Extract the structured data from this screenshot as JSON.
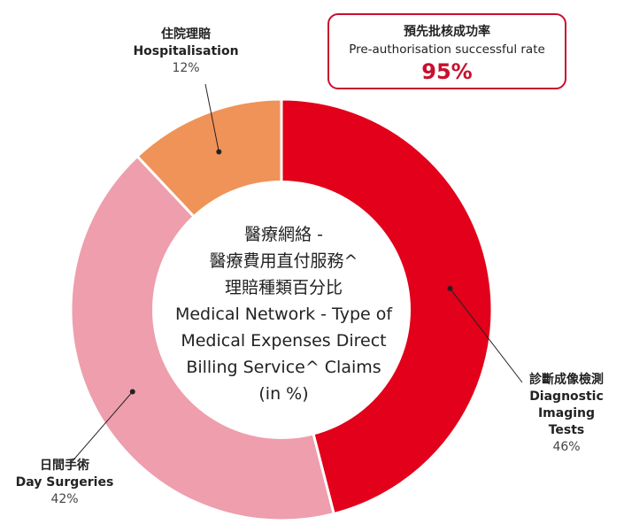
{
  "callout": {
    "label_zh": "預先批核成功率",
    "label_en": "Pre-authorisation successful rate",
    "value": "95%"
  },
  "center_title": {
    "lines": [
      "醫療網絡 -",
      "醫療費用直付服務^",
      "理賠種類百分比",
      "Medical Network - Type of",
      "Medical Expenses Direct",
      "Billing Service^ Claims",
      "(in %)"
    ]
  },
  "chart_data": {
    "type": "pie",
    "donut": true,
    "start": "top",
    "direction": "clockwise",
    "slices": [
      {
        "label_zh": "診斷成像檢測",
        "label_en": "Diagnostic Imaging Tests",
        "value": 46,
        "display": "46%",
        "color": "#e2001a"
      },
      {
        "label_zh": "日間手術",
        "label_en": "Day Surgeries",
        "value": 42,
        "display": "42%",
        "color": "#ee9eac"
      },
      {
        "label_zh": "住院理賠",
        "label_en": "Hospitalisation",
        "value": 12,
        "display": "12%",
        "color": "#ef9359"
      }
    ]
  }
}
